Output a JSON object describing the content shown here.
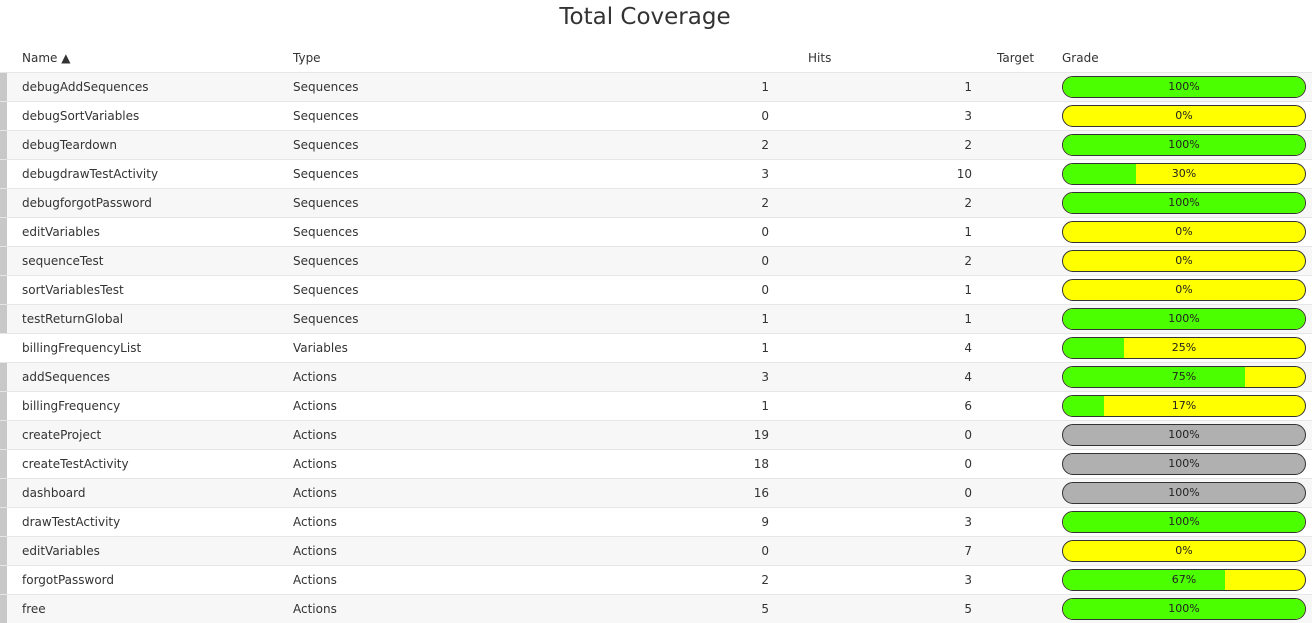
{
  "title": "Total Coverage",
  "columns": {
    "name": "Name ▲",
    "type": "Type",
    "hits": "Hits",
    "target": "Target",
    "grade": "Grade"
  },
  "colors": {
    "full": "#4cff00",
    "partial": "#ffff00",
    "none_target": "#b0b0b0"
  },
  "rows": [
    {
      "name": "debugAddSequences",
      "type": "Sequences",
      "hits": "1",
      "target": "1",
      "grade": "100%",
      "fill": 1.0,
      "status": "green",
      "marker": true
    },
    {
      "name": "debugSortVariables",
      "type": "Sequences",
      "hits": "0",
      "target": "3",
      "grade": "0%",
      "fill": 0.0,
      "status": "yellow",
      "marker": true
    },
    {
      "name": "debugTeardown",
      "type": "Sequences",
      "hits": "2",
      "target": "2",
      "grade": "100%",
      "fill": 1.0,
      "status": "green",
      "marker": true
    },
    {
      "name": "debugdrawTestActivity",
      "type": "Sequences",
      "hits": "3",
      "target": "10",
      "grade": "30%",
      "fill": 0.3,
      "status": "yellow",
      "marker": true
    },
    {
      "name": "debugforgotPassword",
      "type": "Sequences",
      "hits": "2",
      "target": "2",
      "grade": "100%",
      "fill": 1.0,
      "status": "green",
      "marker": true
    },
    {
      "name": "editVariables",
      "type": "Sequences",
      "hits": "0",
      "target": "1",
      "grade": "0%",
      "fill": 0.0,
      "status": "yellow",
      "marker": true
    },
    {
      "name": "sequenceTest",
      "type": "Sequences",
      "hits": "0",
      "target": "2",
      "grade": "0%",
      "fill": 0.0,
      "status": "yellow",
      "marker": true
    },
    {
      "name": "sortVariablesTest",
      "type": "Sequences",
      "hits": "0",
      "target": "1",
      "grade": "0%",
      "fill": 0.0,
      "status": "yellow",
      "marker": true
    },
    {
      "name": "testReturnGlobal",
      "type": "Sequences",
      "hits": "1",
      "target": "1",
      "grade": "100%",
      "fill": 1.0,
      "status": "green",
      "marker": true
    },
    {
      "name": "billingFrequencyList",
      "type": "Variables",
      "hits": "1",
      "target": "4",
      "grade": "25%",
      "fill": 0.25,
      "status": "yellow",
      "marker": false
    },
    {
      "name": "addSequences",
      "type": "Actions",
      "hits": "3",
      "target": "4",
      "grade": "75%",
      "fill": 0.75,
      "status": "yellow",
      "marker": true
    },
    {
      "name": "billingFrequency",
      "type": "Actions",
      "hits": "1",
      "target": "6",
      "grade": "17%",
      "fill": 0.17,
      "status": "yellow",
      "marker": true
    },
    {
      "name": "createProject",
      "type": "Actions",
      "hits": "19",
      "target": "0",
      "grade": "100%",
      "fill": 1.0,
      "status": "gray",
      "marker": true
    },
    {
      "name": "createTestActivity",
      "type": "Actions",
      "hits": "18",
      "target": "0",
      "grade": "100%",
      "fill": 1.0,
      "status": "gray",
      "marker": true
    },
    {
      "name": "dashboard",
      "type": "Actions",
      "hits": "16",
      "target": "0",
      "grade": "100%",
      "fill": 1.0,
      "status": "gray",
      "marker": true
    },
    {
      "name": "drawTestActivity",
      "type": "Actions",
      "hits": "9",
      "target": "3",
      "grade": "100%",
      "fill": 1.0,
      "status": "green",
      "marker": true
    },
    {
      "name": "editVariables",
      "type": "Actions",
      "hits": "0",
      "target": "7",
      "grade": "0%",
      "fill": 0.0,
      "status": "yellow",
      "marker": true
    },
    {
      "name": "forgotPassword",
      "type": "Actions",
      "hits": "2",
      "target": "3",
      "grade": "67%",
      "fill": 0.67,
      "status": "yellow",
      "marker": true
    },
    {
      "name": "free",
      "type": "Actions",
      "hits": "5",
      "target": "5",
      "grade": "100%",
      "fill": 1.0,
      "status": "green",
      "marker": true
    }
  ]
}
